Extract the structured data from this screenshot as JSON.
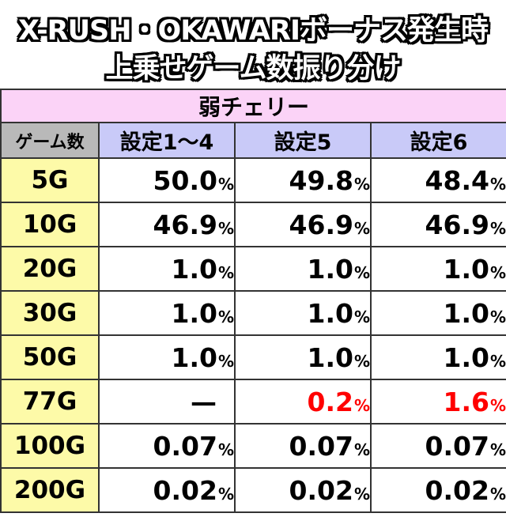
{
  "title": {
    "line1": "X-RUSH・OKAWARIボーナス発生時",
    "line2": "上乗せゲーム数振り分け"
  },
  "table": {
    "category": "弱チェリー",
    "headers": [
      "ゲーム数",
      "設定1～4",
      "設定5",
      "設定6"
    ],
    "percent_sign": "%",
    "rows": [
      {
        "game": "5G",
        "cells": [
          {
            "value": "50.0"
          },
          {
            "value": "49.8"
          },
          {
            "value": "48.4"
          }
        ]
      },
      {
        "game": "10G",
        "cells": [
          {
            "value": "46.9"
          },
          {
            "value": "46.9"
          },
          {
            "value": "46.9"
          }
        ]
      },
      {
        "game": "20G",
        "cells": [
          {
            "value": "1.0"
          },
          {
            "value": "1.0"
          },
          {
            "value": "1.0"
          }
        ]
      },
      {
        "game": "30G",
        "cells": [
          {
            "value": "1.0"
          },
          {
            "value": "1.0"
          },
          {
            "value": "1.0"
          }
        ]
      },
      {
        "game": "50G",
        "cells": [
          {
            "value": "1.0"
          },
          {
            "value": "1.0"
          },
          {
            "value": "1.0"
          }
        ]
      },
      {
        "game": "77G",
        "cells": [
          {
            "value": "—"
          },
          {
            "value": "0.2",
            "color": "#ff0000"
          },
          {
            "value": "1.6",
            "color": "#ff0000"
          }
        ]
      },
      {
        "game": "100G",
        "cells": [
          {
            "value": "0.07"
          },
          {
            "value": "0.07"
          },
          {
            "value": "0.07"
          }
        ]
      },
      {
        "game": "200G",
        "cells": [
          {
            "value": "0.02"
          },
          {
            "value": "0.02"
          },
          {
            "value": "0.02"
          }
        ]
      }
    ]
  }
}
